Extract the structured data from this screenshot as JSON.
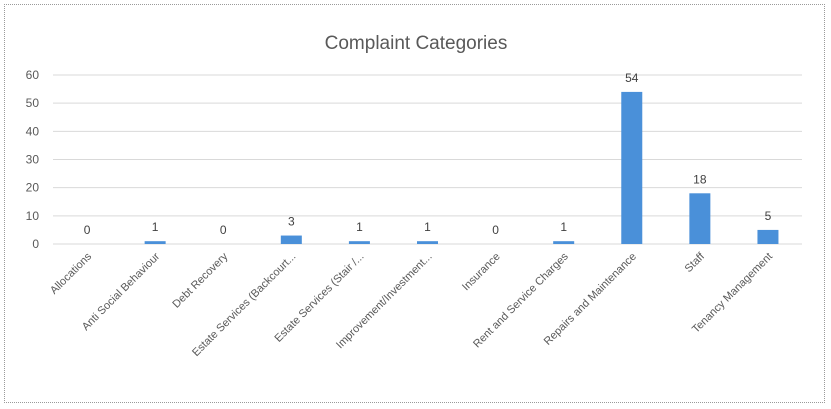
{
  "chart_data": {
    "type": "bar",
    "title": "Complaint Categories",
    "categories": [
      "Allocations",
      "Anti Social Behaviour",
      "Debt Recovery",
      "Estate Services (Backcourt...",
      "Estate Services (Stair /...",
      "Improvement/Investment...",
      "Insurance",
      "Rent and Service Charges",
      "Repairs and Maintenance",
      "Staff",
      "Tenancy Management"
    ],
    "values": [
      0,
      1,
      0,
      3,
      1,
      1,
      0,
      1,
      54,
      18,
      5
    ],
    "ylim": [
      0,
      60
    ],
    "yticks": [
      0,
      10,
      20,
      30,
      40,
      50,
      60
    ],
    "grid": true,
    "legend": "none",
    "bar_color": "#4a90d9"
  }
}
